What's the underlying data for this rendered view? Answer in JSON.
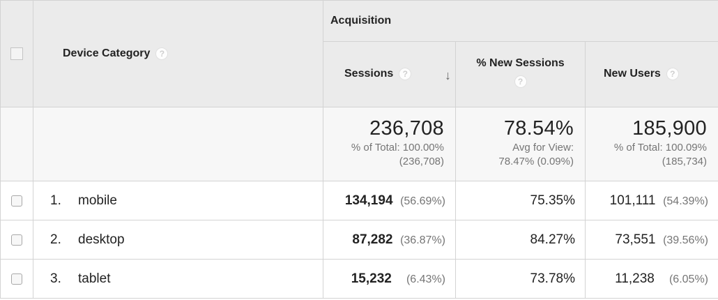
{
  "header": {
    "dimension_label": "Device Category",
    "group_label": "Acquisition",
    "metrics": [
      {
        "label": "Sessions"
      },
      {
        "label": "% New Sessions"
      },
      {
        "label": "New Users"
      }
    ],
    "help_glyph": "?",
    "sort_glyph": "↓"
  },
  "totals": {
    "sessions": {
      "value": "236,708",
      "line1": "% of Total: 100.00%",
      "line2": "(236,708)"
    },
    "new_sessions": {
      "value": "78.54%",
      "line1": "Avg for View:",
      "line2": "78.47% (0.09%)"
    },
    "new_users": {
      "value": "185,900",
      "line1": "% of Total: 100.09%",
      "line2": "(185,734)"
    }
  },
  "rows": [
    {
      "rank": "1.",
      "device": "mobile",
      "sessions": "134,194",
      "sessions_pct": "(56.69%)",
      "new_sessions": "75.35%",
      "new_users": "101,111",
      "new_users_pct": "(54.39%)"
    },
    {
      "rank": "2.",
      "device": "desktop",
      "sessions": "87,282",
      "sessions_pct": "(36.87%)",
      "new_sessions": "84.27%",
      "new_users": "73,551",
      "new_users_pct": "(39.56%)"
    },
    {
      "rank": "3.",
      "device": "tablet",
      "sessions": "15,232",
      "sessions_pct": "(6.43%)",
      "new_sessions": "73.78%",
      "new_users": "11,238",
      "new_users_pct": "(6.05%)"
    }
  ]
}
